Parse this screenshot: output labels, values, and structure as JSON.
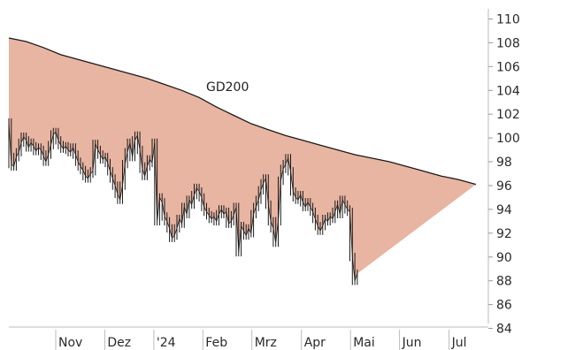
{
  "chart_data": {
    "type": "area",
    "title": "",
    "xlabel": "",
    "ylabel": "",
    "ylim": [
      83,
      111
    ],
    "grid": false,
    "legend": "none",
    "y_ticks": [
      84,
      86,
      88,
      90,
      92,
      94,
      96,
      98,
      100,
      102,
      104,
      106,
      108,
      110
    ],
    "x_ticks": [
      "Nov",
      "Dez",
      "'24",
      "Feb",
      "Mrz",
      "Apr",
      "Mai",
      "Jun",
      "Jul"
    ],
    "annotation": "GD200",
    "colors": {
      "fill": "#e8b5a2",
      "line": "#1a1a1a",
      "axis": "#bbbbbb"
    },
    "series": [
      {
        "name": "GD200",
        "points": [
          [
            0,
            108.4
          ],
          [
            7,
            108.1
          ],
          [
            14,
            107.6
          ],
          [
            21,
            107.0
          ],
          [
            28,
            106.6
          ],
          [
            35,
            106.2
          ],
          [
            42,
            105.8
          ],
          [
            49,
            105.4
          ],
          [
            56,
            105.0
          ],
          [
            63,
            104.5
          ],
          [
            70,
            104.0
          ],
          [
            77,
            103.4
          ],
          [
            84,
            102.6
          ],
          [
            91,
            101.9
          ],
          [
            98,
            101.2
          ],
          [
            105,
            100.7
          ],
          [
            112,
            100.2
          ],
          [
            119,
            99.8
          ],
          [
            126,
            99.4
          ],
          [
            133,
            99.0
          ],
          [
            140,
            98.6
          ],
          [
            147,
            98.3
          ],
          [
            154,
            98.0
          ],
          [
            161,
            97.6
          ],
          [
            168,
            97.2
          ],
          [
            175,
            96.8
          ],
          [
            182,
            96.5
          ],
          [
            189,
            96.1
          ]
        ]
      },
      {
        "name": "",
        "points": [
          [
            0,
            101.3
          ],
          [
            1,
            97.8
          ],
          [
            2,
            97.6
          ],
          [
            3,
            98.4
          ],
          [
            4,
            98.8
          ],
          [
            5,
            99.6
          ],
          [
            6,
            100.1
          ],
          [
            7,
            99.8
          ],
          [
            8,
            99.2
          ],
          [
            9,
            99.6
          ],
          [
            10,
            99.3
          ],
          [
            11,
            98.9
          ],
          [
            12,
            99.2
          ],
          [
            13,
            99.0
          ],
          [
            14,
            98.5
          ],
          [
            15,
            98.0
          ],
          [
            16,
            98.6
          ],
          [
            17,
            99.4
          ],
          [
            18,
            100.3
          ],
          [
            19,
            100.5
          ],
          [
            20,
            99.8
          ],
          [
            21,
            99.4
          ],
          [
            22,
            99.1
          ],
          [
            23,
            99.3
          ],
          [
            24,
            99.0
          ],
          [
            25,
            98.8
          ],
          [
            26,
            99.2
          ],
          [
            27,
            98.6
          ],
          [
            28,
            98.0
          ],
          [
            29,
            97.6
          ],
          [
            30,
            97.3
          ],
          [
            31,
            96.8
          ],
          [
            32,
            96.6
          ],
          [
            33,
            97.0
          ],
          [
            34,
            97.2
          ],
          [
            35,
            99.5
          ],
          [
            36,
            99.0
          ],
          [
            37,
            98.6
          ],
          [
            38,
            98.2
          ],
          [
            39,
            98.4
          ],
          [
            40,
            97.9
          ],
          [
            41,
            97.2
          ],
          [
            42,
            96.6
          ],
          [
            43,
            96.0
          ],
          [
            44,
            95.3
          ],
          [
            45,
            94.8
          ],
          [
            46,
            96.0
          ],
          [
            47,
            97.8
          ],
          [
            48,
            98.8
          ],
          [
            49,
            99.6
          ],
          [
            50,
            98.4
          ],
          [
            51,
            99.8
          ],
          [
            52,
            100.2
          ],
          [
            53,
            99.0
          ],
          [
            54,
            97.4
          ],
          [
            55,
            96.8
          ],
          [
            56,
            97.6
          ],
          [
            57,
            98.2
          ],
          [
            58,
            97.9
          ],
          [
            59,
            99.6
          ],
          [
            60,
            93.0
          ],
          [
            61,
            95.0
          ],
          [
            62,
            94.6
          ],
          [
            63,
            93.4
          ],
          [
            64,
            93.0
          ],
          [
            65,
            92.4
          ],
          [
            66,
            91.6
          ],
          [
            67,
            91.8
          ],
          [
            68,
            92.4
          ],
          [
            69,
            93.2
          ],
          [
            70,
            92.8
          ],
          [
            71,
            94.2
          ],
          [
            72,
            93.6
          ],
          [
            73,
            94.8
          ],
          [
            74,
            94.4
          ],
          [
            75,
            95.2
          ],
          [
            76,
            95.8
          ],
          [
            77,
            95.5
          ],
          [
            78,
            95.0
          ],
          [
            79,
            94.2
          ],
          [
            80,
            93.8
          ],
          [
            81,
            93.5
          ],
          [
            82,
            93.2
          ],
          [
            83,
            93.4
          ],
          [
            84,
            93.0
          ],
          [
            85,
            93.6
          ],
          [
            86,
            94.0
          ],
          [
            87,
            93.6
          ],
          [
            88,
            93.8
          ],
          [
            89,
            92.8
          ],
          [
            90,
            93.0
          ],
          [
            91,
            93.5
          ],
          [
            92,
            94.2
          ],
          [
            93,
            90.4
          ],
          [
            94,
            92.6
          ],
          [
            95,
            92.2
          ],
          [
            96,
            91.8
          ],
          [
            97,
            92.4
          ],
          [
            98,
            92.0
          ],
          [
            99,
            93.6
          ],
          [
            100,
            94.2
          ],
          [
            101,
            94.8
          ],
          [
            102,
            95.6
          ],
          [
            103,
            96.2
          ],
          [
            104,
            96.6
          ],
          [
            105,
            94.4
          ],
          [
            106,
            93.0
          ],
          [
            107,
            92.4
          ],
          [
            108,
            91.2
          ],
          [
            109,
            93.0
          ],
          [
            110,
            96.4
          ],
          [
            111,
            97.4
          ],
          [
            112,
            97.8
          ],
          [
            113,
            98.3
          ],
          [
            114,
            97.2
          ],
          [
            115,
            95.5
          ],
          [
            116,
            95.0
          ],
          [
            117,
            94.8
          ],
          [
            118,
            95.2
          ],
          [
            119,
            94.6
          ],
          [
            120,
            94.2
          ],
          [
            121,
            94.6
          ],
          [
            122,
            94.2
          ],
          [
            123,
            93.8
          ],
          [
            124,
            93.2
          ],
          [
            125,
            92.6
          ],
          [
            126,
            92.2
          ],
          [
            127,
            92.6
          ],
          [
            128,
            93.2
          ],
          [
            129,
            93.0
          ],
          [
            130,
            93.4
          ],
          [
            131,
            93.2
          ],
          [
            132,
            93.8
          ],
          [
            133,
            94.4
          ],
          [
            134,
            93.6
          ],
          [
            135,
            94.8
          ],
          [
            136,
            94.4
          ],
          [
            137,
            94.0
          ],
          [
            138,
            93.8
          ],
          [
            139,
            90.0
          ],
          [
            140,
            88.0
          ],
          [
            141,
            88.6
          ]
        ]
      }
    ]
  }
}
